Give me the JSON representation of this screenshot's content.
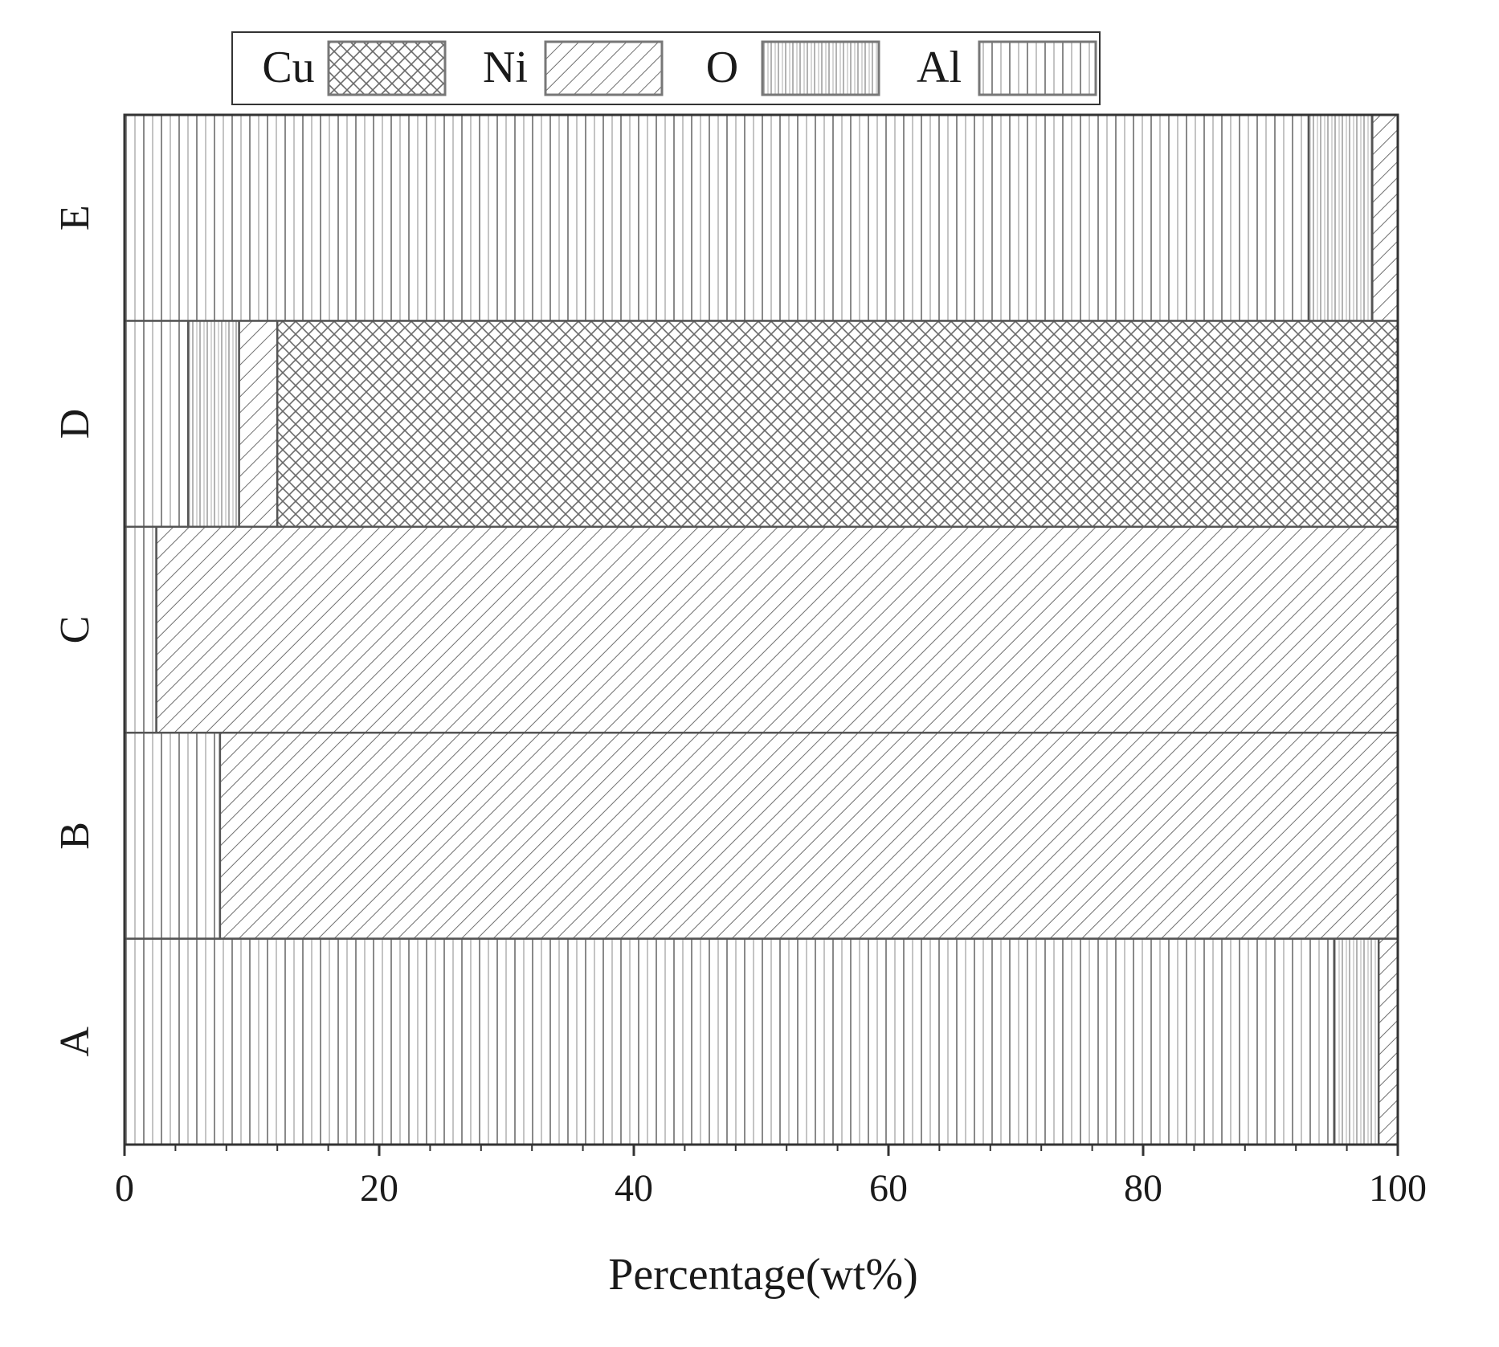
{
  "chart_data": {
    "type": "bar",
    "orientation": "horizontal",
    "stacked": true,
    "categories": [
      "A",
      "B",
      "C",
      "D",
      "E"
    ],
    "series": [
      {
        "name": "Cu",
        "values": [
          0,
          0,
          0,
          88,
          0
        ]
      },
      {
        "name": "Ni",
        "values": [
          1.5,
          92.5,
          97.5,
          3,
          2
        ]
      },
      {
        "name": "O",
        "values": [
          3.5,
          0,
          0,
          4,
          5
        ]
      },
      {
        "name": "Al",
        "values": [
          95,
          7.5,
          2.5,
          5,
          93
        ]
      }
    ],
    "stack_order": [
      "Al",
      "O",
      "Ni",
      "Cu"
    ],
    "xlabel": "Percentage(wt%)",
    "ylabel": "",
    "title": "",
    "xlim": [
      0,
      100
    ],
    "xticks": [
      0,
      20,
      40,
      60,
      80,
      100
    ],
    "xtick_labels": [
      "0",
      "20",
      "40",
      "60",
      "80",
      "100"
    ],
    "grid": false,
    "legend": {
      "placement": "top-center",
      "entries": [
        "Cu",
        "Ni",
        "O",
        "Al"
      ]
    },
    "patterns": {
      "Cu": "crosshatch",
      "Ni": "diagonal",
      "O": "dense-vertical",
      "Al": "vertical"
    },
    "colors": {
      "ink": "#555555",
      "background": "#ffffff"
    }
  }
}
